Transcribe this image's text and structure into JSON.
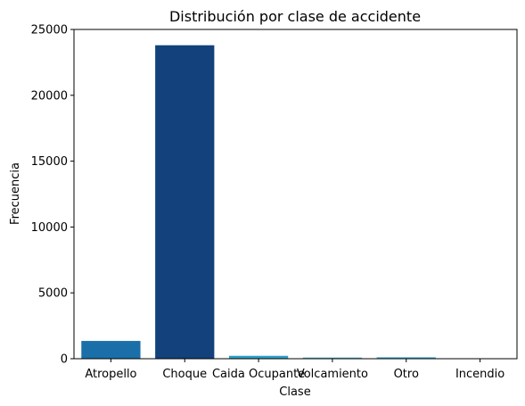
{
  "chart_data": {
    "type": "bar",
    "title": "Distribución por clase de accidente",
    "xlabel": "Clase",
    "ylabel": "Frecuencia",
    "categories": [
      "Atropello",
      "Choque",
      "Caida Ocupante",
      "Volcamiento",
      "Otro",
      "Incendio"
    ],
    "values": [
      1350,
      23800,
      220,
      90,
      110,
      10
    ],
    "colors": [
      "#1a6fa8",
      "#12417c",
      "#2f9fc6",
      "#4bb6d8",
      "#3aa9cf",
      "#2a8fbf"
    ],
    "ylim": [
      0,
      25000
    ],
    "yticks": [
      0,
      5000,
      10000,
      15000,
      20000,
      25000
    ],
    "grid": false,
    "legend": "none"
  }
}
